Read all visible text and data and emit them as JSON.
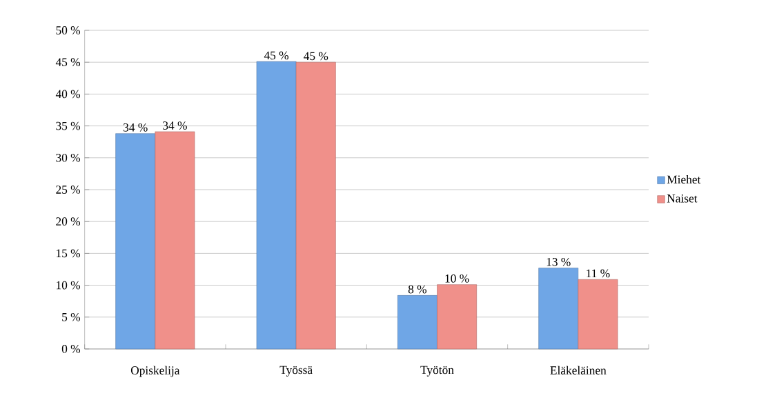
{
  "chart_data": {
    "type": "bar",
    "categories": [
      "Opiskelija",
      "Työssä",
      "Työtön",
      "Eläkeläinen"
    ],
    "series": [
      {
        "name": "Miehet",
        "color": "#6fa6e6",
        "values": [
          33.8,
          45.1,
          8.4,
          12.7
        ],
        "value_labels": [
          "34 %",
          "45 %",
          "8 %",
          "13 %"
        ]
      },
      {
        "name": "Naiset",
        "color": "#f0908a",
        "values": [
          34.1,
          45.0,
          10.1,
          10.9
        ],
        "value_labels": [
          "34 %",
          "45 %",
          "10 %",
          "11 %"
        ]
      }
    ],
    "ylim": [
      0,
      50
    ],
    "yticks": [
      {
        "value": 0,
        "label": "0 %"
      },
      {
        "value": 5,
        "label": "5 %"
      },
      {
        "value": 10,
        "label": "10 %"
      },
      {
        "value": 15,
        "label": "15 %"
      },
      {
        "value": 20,
        "label": "20 %"
      },
      {
        "value": 25,
        "label": "25 %"
      },
      {
        "value": 30,
        "label": "30 %"
      },
      {
        "value": 35,
        "label": "35 %"
      },
      {
        "value": 40,
        "label": "40 %"
      },
      {
        "value": 45,
        "label": "45 %"
      },
      {
        "value": 50,
        "label": "50 %"
      }
    ],
    "grid": "y",
    "legend": "right"
  }
}
